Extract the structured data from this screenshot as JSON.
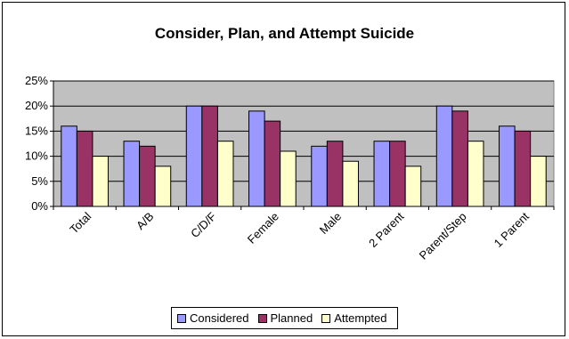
{
  "colors": {
    "plot_background": "#C0C0C0",
    "grid": "#000000",
    "series": [
      "#9999FF",
      "#993366",
      "#FFFFCC"
    ]
  },
  "chart_data": {
    "type": "bar",
    "title": "Consider, Plan, and Attempt Suicide",
    "xlabel": "",
    "ylabel": "",
    "ylim": [
      0,
      25
    ],
    "yticks": [
      "0%",
      "5%",
      "10%",
      "15%",
      "20%",
      "25%"
    ],
    "categories": [
      "Total",
      "A/B",
      "C/D/F",
      "Female",
      "Male",
      "2 Parent",
      "Parent/Step",
      "1 Parent"
    ],
    "series": [
      {
        "name": "Considered",
        "values": [
          16,
          13,
          20,
          19,
          12,
          13,
          20,
          16
        ]
      },
      {
        "name": "Planned",
        "values": [
          15,
          12,
          20,
          17,
          13,
          13,
          19,
          15
        ]
      },
      {
        "name": "Attempted",
        "values": [
          10,
          8,
          13,
          11,
          9,
          8,
          13,
          10
        ]
      }
    ],
    "grid": true,
    "legend_position": "bottom"
  }
}
